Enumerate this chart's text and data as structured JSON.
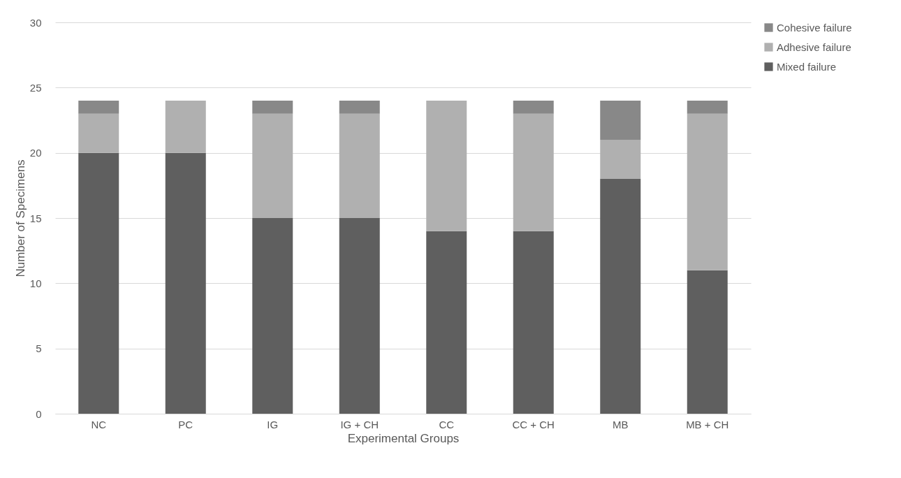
{
  "chart_data": {
    "type": "bar",
    "stacked": true,
    "xlabel": "Experimental Groups",
    "ylabel": "Number of Specimens",
    "categories": [
      "NC",
      "PC",
      "IG",
      "IG + CH",
      "CC",
      "CC + CH",
      "MB",
      "MB + CH"
    ],
    "series": [
      {
        "name": "Mixed failure",
        "color": "#5f5f5f",
        "values": [
          20,
          20,
          15,
          15,
          14,
          14,
          18,
          11
        ]
      },
      {
        "name": "Adhesive failure",
        "color": "#b0b0b0",
        "values": [
          3,
          4,
          8,
          8,
          10,
          9,
          3,
          12
        ]
      },
      {
        "name": "Cohesive failure",
        "color": "#888888",
        "values": [
          1,
          0,
          1,
          1,
          0,
          1,
          3,
          1
        ]
      }
    ],
    "ylim": [
      0,
      30
    ],
    "yticks": [
      0,
      5,
      10,
      15,
      20,
      25,
      30
    ],
    "grid": "y",
    "legend": "right"
  }
}
